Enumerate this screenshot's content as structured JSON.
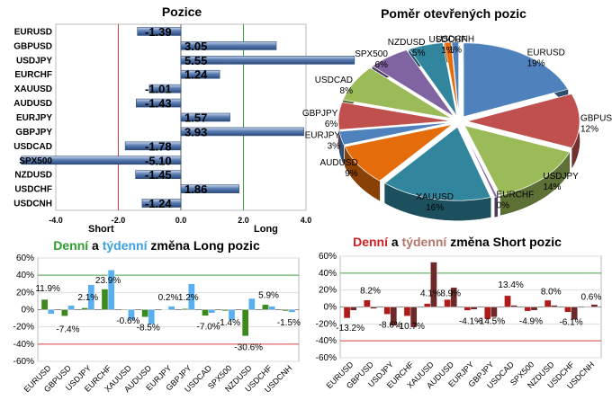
{
  "chart_data": [
    {
      "type": "bar",
      "orientation": "horizontal",
      "title": "Pozice",
      "categories": [
        "EURUSD",
        "GBPUSD",
        "USDJPY",
        "EURCHF",
        "XAUUSD",
        "AUDUSD",
        "EURJPY",
        "GBPJPY",
        "USDCAD",
        "SPX500",
        "NZDUSD",
        "USDCHF",
        "USDCNH"
      ],
      "values": [
        -1.39,
        3.05,
        5.55,
        1.24,
        -1.01,
        -1.43,
        1.57,
        3.93,
        -1.78,
        -5.1,
        -1.45,
        1.86,
        -1.24
      ],
      "value_labels": [
        "-1.39",
        "3.05",
        "5.55",
        "1.24",
        "-1.01",
        "-1.43",
        "1.57",
        "3.93",
        "-1.78",
        "-5.10",
        "-1.45",
        "1.86",
        "-1.24"
      ],
      "xlim": [
        -4,
        4
      ],
      "xticks": [
        "-4.0",
        "-2.0",
        "0.0",
        "2.0",
        "4.0"
      ],
      "left_label": "Short",
      "right_label": "Long",
      "bar_color": "#4a6fa5"
    },
    {
      "type": "pie",
      "title": "Poměr  otevřených  pozic",
      "slices": [
        {
          "name": "EURUSD",
          "label": "19%",
          "value": 19,
          "color": "#4f81bd"
        },
        {
          "name": "GBPUSD",
          "label": "12%",
          "value": 12,
          "color": "#c0504d"
        },
        {
          "name": "USDJPY",
          "label": "14%",
          "value": 14,
          "color": "#9bbb59"
        },
        {
          "name": "EURCHF",
          "label": "0%",
          "value": 0.4,
          "color": "#8064a2"
        },
        {
          "name": "XAUUSD",
          "label": "16%",
          "value": 16,
          "color": "#31859c"
        },
        {
          "name": "AUDUSD",
          "label": "9%",
          "value": 9,
          "color": "#e46c0a"
        },
        {
          "name": "EURJPY",
          "label": "3%",
          "value": 3,
          "color": "#4f81bd"
        },
        {
          "name": "GBPJPY",
          "label": "6%",
          "value": 6,
          "color": "#c0504d"
        },
        {
          "name": "USDCAD",
          "label": "8%",
          "value": 8,
          "color": "#9bbb59"
        },
        {
          "name": "SPX500",
          "label": "6%",
          "value": 6,
          "color": "#8064a2"
        },
        {
          "name": "NZDUSD",
          "label": "5%",
          "value": 5,
          "color": "#31859c"
        },
        {
          "name": "USDCHF",
          "label": "1%",
          "value": 1,
          "color": "#e46c0a"
        },
        {
          "name": "USDCNH",
          "label": "1%",
          "value": 1,
          "color": "#4f81bd"
        }
      ]
    },
    {
      "type": "bar",
      "title_parts": [
        "Denní",
        " a ",
        "týdenní",
        " změna Long pozic"
      ],
      "title_colors": [
        "#2e9e2e",
        "#000000",
        "#3aa0e0",
        "#000000"
      ],
      "categories": [
        "EURUSD",
        "GBPUSD",
        "USDJPY",
        "EURCHF",
        "XAUUSD",
        "AUDUSD",
        "EURJPY",
        "GBPJPY",
        "USDCAD",
        "SPX500",
        "NZDUSD",
        "USDCHF",
        "USDCNH"
      ],
      "series": [
        {
          "values": [
            11.9,
            -7.4,
            2.1,
            23.9,
            -0.6,
            -8.5,
            0.2,
            1.2,
            -7.0,
            -1.4,
            -30.6,
            5.9,
            -1.5
          ],
          "color": "#3c8a1e"
        },
        {
          "values": [
            -5.0,
            5.0,
            29.0,
            46.0,
            -12.0,
            -17.0,
            4.0,
            30.0,
            -4.0,
            -12.0,
            13.0,
            4.0,
            -3.0
          ],
          "color": "#59b0f0"
        }
      ],
      "labels": [
        {
          "text": "11.9%",
          "cat": 0,
          "y": 25.5
        },
        {
          "text": "-7.4%",
          "cat": 1,
          "y": -22
        },
        {
          "text": "2.1%",
          "cat": 2,
          "y": 15
        },
        {
          "text": "23.9%",
          "cat": 3,
          "y": 35
        },
        {
          "text": "-0.6%",
          "cat": 4,
          "y": -12
        },
        {
          "text": "-8.5%",
          "cat": 5,
          "y": -20
        },
        {
          "text": "0.2%",
          "cat": 6,
          "y": 15
        },
        {
          "text": "1.2%",
          "cat": 7,
          "y": 15
        },
        {
          "text": "-7.0%",
          "cat": 8,
          "y": -19
        },
        {
          "text": "-1.4%",
          "cat": 9,
          "y": -14
        },
        {
          "text": "-30.6%",
          "cat": 10,
          "y": -43
        },
        {
          "text": "5.9%",
          "cat": 11,
          "y": 18
        },
        {
          "text": "-1.5%",
          "cat": 12,
          "y": -14
        }
      ],
      "ylim": [
        -60,
        60
      ],
      "yticks": [
        "60%",
        "40%",
        "20%",
        "0%",
        "-20%",
        "-40%",
        "-60%"
      ]
    },
    {
      "type": "bar",
      "title_parts": [
        "Denní",
        " a ",
        "týdenní",
        " změna Short pozic"
      ],
      "title_colors": [
        "#d62020",
        "#000000",
        "#b5756a",
        "#000000"
      ],
      "categories": [
        "EURUSD",
        "GBPUSD",
        "USDJPY",
        "EURCHF",
        "XAUUSD",
        "AUDUSD",
        "EURJPY",
        "GBPJPY",
        "USDCAD",
        "SPX500",
        "NZDUSD",
        "USDCHF",
        "USDCNH"
      ],
      "series": [
        {
          "values": [
            -13.2,
            8.2,
            -8.6,
            -10.7,
            4.1,
            8.9,
            -4.1,
            -14.5,
            13.4,
            -4.9,
            8.0,
            -6.1,
            0.6
          ],
          "color": "#b01c1c"
        },
        {
          "values": [
            -4.0,
            -2.0,
            -22.0,
            -24.0,
            53.0,
            23.0,
            -3.0,
            -12.0,
            2.0,
            -4.0,
            2.0,
            -15.0,
            3.0
          ],
          "color": "#6e2a2a"
        }
      ],
      "labels": [
        {
          "text": "-13.2%",
          "cat": 0,
          "y": -24
        },
        {
          "text": "8.2%",
          "cat": 1,
          "y": 20
        },
        {
          "text": "-8.6%",
          "cat": 2,
          "y": -20
        },
        {
          "text": "-10.7%",
          "cat": 3,
          "y": -22
        },
        {
          "text": "4.1%",
          "cat": 4,
          "y": 17
        },
        {
          "text": "8.9%",
          "cat": 5,
          "y": 17
        },
        {
          "text": "-4.1%",
          "cat": 6,
          "y": -16
        },
        {
          "text": "-14.5%",
          "cat": 7,
          "y": -16
        },
        {
          "text": "13.4%",
          "cat": 8,
          "y": 27
        },
        {
          "text": "-4.9%",
          "cat": 9,
          "y": -16
        },
        {
          "text": "8.0%",
          "cat": 10,
          "y": 19
        },
        {
          "text": "-6.1%",
          "cat": 11,
          "y": -17
        },
        {
          "text": "0.6%",
          "cat": 12,
          "y": 13
        }
      ],
      "ylim": [
        -60,
        60
      ],
      "yticks": [
        "60%",
        "40%",
        "20%",
        "0%",
        "-20%",
        "-40%",
        "-60%"
      ]
    }
  ]
}
